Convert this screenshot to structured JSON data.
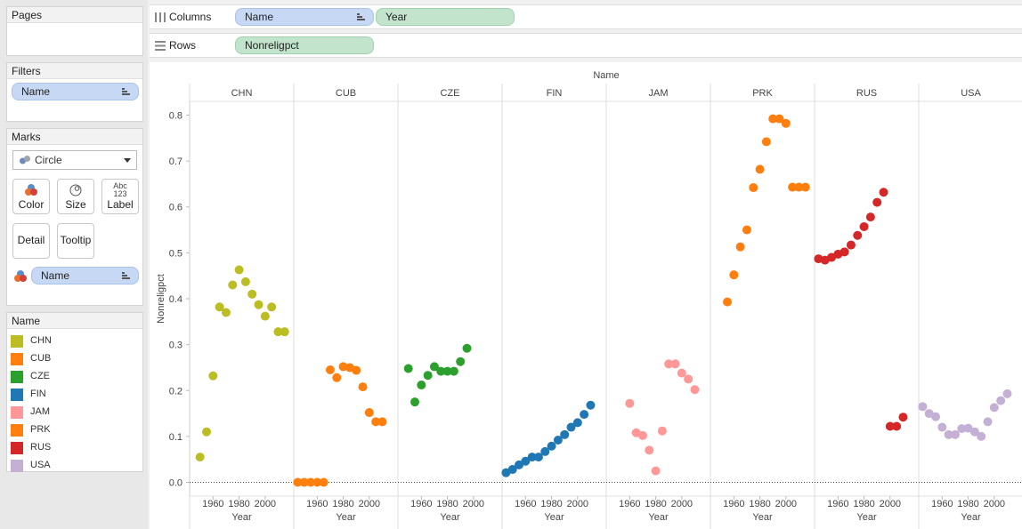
{
  "cards": {
    "pages": {
      "title": "Pages"
    },
    "filters": {
      "title": "Filters",
      "pill": "Name"
    },
    "marks": {
      "title": "Marks",
      "mark_type": "Circle",
      "buttons": [
        "Color",
        "Size",
        "Label",
        "Detail",
        "Tooltip"
      ],
      "label_icon_text": [
        "Abc",
        "123"
      ],
      "color_pill": "Name"
    },
    "legend": {
      "title": "Name",
      "items": [
        {
          "name": "CHN",
          "color": "#bcbd22"
        },
        {
          "name": "CUB",
          "color": "#ff7f0e"
        },
        {
          "name": "CZE",
          "color": "#2ca02c"
        },
        {
          "name": "FIN",
          "color": "#1f77b4"
        },
        {
          "name": "JAM",
          "color": "#ff9896"
        },
        {
          "name": "PRK",
          "color": "#ff7f0e"
        },
        {
          "name": "RUS",
          "color": "#d62728"
        },
        {
          "name": "USA",
          "color": "#c5b0d5"
        }
      ]
    }
  },
  "shelves": {
    "columns": {
      "label": "Columns",
      "pills": [
        "Name",
        "Year"
      ]
    },
    "rows": {
      "label": "Rows",
      "pills": [
        "Nonreligpct"
      ]
    }
  },
  "chart_data": {
    "type": "scatter",
    "title": "Name",
    "xlabel": "Year",
    "ylabel": "Nonreligpct",
    "ylim": [
      -0.03,
      0.83
    ],
    "yticks": [
      "0.0",
      "0.1",
      "0.2",
      "0.3",
      "0.4",
      "0.5",
      "0.6",
      "0.7",
      "0.8"
    ],
    "xticks": [
      "1960",
      "1980",
      "2000"
    ],
    "xlim": [
      1942,
      2022
    ],
    "grid": false,
    "legend": "left-panel",
    "panels": [
      {
        "name": "CHN",
        "color": "#bcbd22",
        "points": [
          [
            1950,
            0.055
          ],
          [
            1955,
            0.11
          ],
          [
            1960,
            0.232
          ],
          [
            1965,
            0.382
          ],
          [
            1970,
            0.37
          ],
          [
            1975,
            0.43
          ],
          [
            1980,
            0.463
          ],
          [
            1985,
            0.437
          ],
          [
            1990,
            0.41
          ],
          [
            1995,
            0.387
          ],
          [
            2000,
            0.362
          ],
          [
            2005,
            0.382
          ],
          [
            2010,
            0.328
          ],
          [
            2015,
            0.328
          ]
        ]
      },
      {
        "name": "CUB",
        "color": "#ff7f0e",
        "points": [
          [
            1945,
            0.0
          ],
          [
            1950,
            0.0
          ],
          [
            1955,
            0.0
          ],
          [
            1960,
            0.0
          ],
          [
            1965,
            0.0
          ],
          [
            1970,
            0.245
          ],
          [
            1975,
            0.228
          ],
          [
            1980,
            0.252
          ],
          [
            1985,
            0.25
          ],
          [
            1990,
            0.244
          ],
          [
            1995,
            0.208
          ],
          [
            2000,
            0.152
          ],
          [
            2005,
            0.132
          ],
          [
            2010,
            0.132
          ]
        ]
      },
      {
        "name": "CZE",
        "color": "#2ca02c",
        "points": [
          [
            1950,
            0.248
          ],
          [
            1955,
            0.175
          ],
          [
            1960,
            0.212
          ],
          [
            1965,
            0.233
          ],
          [
            1970,
            0.252
          ],
          [
            1975,
            0.242
          ],
          [
            1980,
            0.242
          ],
          [
            1985,
            0.242
          ],
          [
            1990,
            0.263
          ],
          [
            1995,
            0.292
          ]
        ]
      },
      {
        "name": "FIN",
        "color": "#1f77b4",
        "points": [
          [
            1945,
            0.021
          ],
          [
            1950,
            0.028
          ],
          [
            1955,
            0.038
          ],
          [
            1960,
            0.046
          ],
          [
            1965,
            0.055
          ],
          [
            1970,
            0.055
          ],
          [
            1975,
            0.067
          ],
          [
            1980,
            0.079
          ],
          [
            1985,
            0.092
          ],
          [
            1990,
            0.104
          ],
          [
            1995,
            0.12
          ],
          [
            2000,
            0.13
          ],
          [
            2005,
            0.148
          ],
          [
            2010,
            0.168
          ]
        ]
      },
      {
        "name": "JAM",
        "color": "#ff9896",
        "points": [
          [
            1960,
            0.172
          ],
          [
            1965,
            0.108
          ],
          [
            1970,
            0.102
          ],
          [
            1975,
            0.07
          ],
          [
            1980,
            0.025
          ],
          [
            1985,
            0.112
          ],
          [
            1990,
            0.258
          ],
          [
            1995,
            0.258
          ],
          [
            2000,
            0.238
          ],
          [
            2005,
            0.225
          ],
          [
            2010,
            0.202
          ]
        ]
      },
      {
        "name": "PRK",
        "color": "#ff7f0e",
        "points": [
          [
            1955,
            0.393
          ],
          [
            1960,
            0.452
          ],
          [
            1965,
            0.513
          ],
          [
            1970,
            0.55
          ],
          [
            1975,
            0.642
          ],
          [
            1980,
            0.682
          ],
          [
            1985,
            0.742
          ],
          [
            1990,
            0.792
          ],
          [
            1995,
            0.792
          ],
          [
            2000,
            0.782
          ],
          [
            2005,
            0.643
          ],
          [
            2010,
            0.643
          ],
          [
            2015,
            0.643
          ]
        ]
      },
      {
        "name": "RUS",
        "color": "#d62728",
        "points": [
          [
            1945,
            0.487
          ],
          [
            1950,
            0.484
          ],
          [
            1955,
            0.49
          ],
          [
            1960,
            0.497
          ],
          [
            1965,
            0.502
          ],
          [
            1970,
            0.517
          ],
          [
            1975,
            0.538
          ],
          [
            1980,
            0.557
          ],
          [
            1985,
            0.578
          ],
          [
            1990,
            0.61
          ],
          [
            1995,
            0.632
          ],
          [
            2000,
            0.122
          ],
          [
            2005,
            0.122
          ],
          [
            2010,
            0.142
          ]
        ]
      },
      {
        "name": "USA",
        "color": "#c5b0d5",
        "points": [
          [
            1945,
            0.165
          ],
          [
            1950,
            0.15
          ],
          [
            1955,
            0.143
          ],
          [
            1960,
            0.12
          ],
          [
            1965,
            0.104
          ],
          [
            1970,
            0.104
          ],
          [
            1975,
            0.117
          ],
          [
            1980,
            0.118
          ],
          [
            1985,
            0.11
          ],
          [
            1990,
            0.1
          ],
          [
            1995,
            0.132
          ],
          [
            2000,
            0.163
          ],
          [
            2005,
            0.178
          ],
          [
            2010,
            0.193
          ]
        ]
      }
    ]
  }
}
